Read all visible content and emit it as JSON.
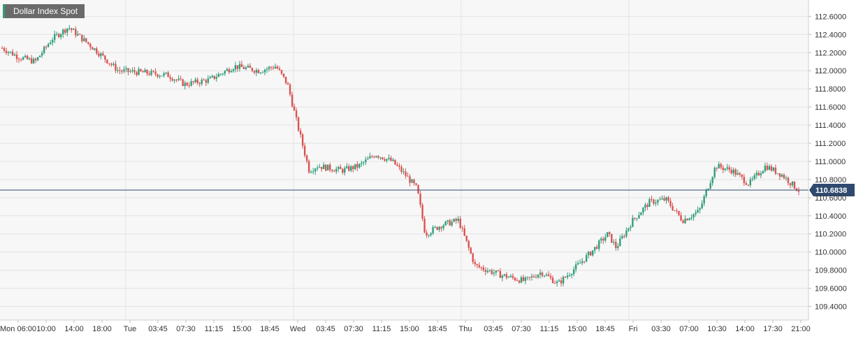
{
  "chart_data": {
    "type": "candlestick",
    "title": "Dollar Index Spot",
    "last_price": "110.6838",
    "ylim": [
      109.25,
      112.78
    ],
    "y_ticks": [
      "112.6000",
      "112.4000",
      "112.2000",
      "112.0000",
      "111.8000",
      "111.6000",
      "111.4000",
      "111.2000",
      "111.0000",
      "110.8000",
      "110.6000",
      "110.4000",
      "110.2000",
      "110.0000",
      "109.8000",
      "109.6000",
      "109.4000"
    ],
    "x_ticks": [
      "Mon 06:00",
      "10:00",
      "14:00",
      "18:00",
      "Tue",
      "03:45",
      "07:30",
      "11:15",
      "15:00",
      "18:45",
      "Wed",
      "03:45",
      "07:30",
      "11:15",
      "15:00",
      "18:45",
      "Thu",
      "03:45",
      "07:30",
      "11:15",
      "15:00",
      "18:45",
      "Fri",
      "03:30",
      "07:00",
      "10:30",
      "14:00",
      "17:30",
      "21:00"
    ],
    "vertical_grid_at": [
      "Tue",
      "Wed",
      "Thu",
      "Fri"
    ],
    "grid": true,
    "colors": {
      "up": "#2e9e7a",
      "down": "#d9534f",
      "last_line": "#2f4a6e",
      "label_bg": "#2f4a6e",
      "grid": "#e3e3e3",
      "plot_bg": "#f7f7f8"
    },
    "path_anchors": [
      {
        "day": 0.0,
        "price": 112.25
      },
      {
        "day": 0.1,
        "price": 112.15
      },
      {
        "day": 0.2,
        "price": 112.1
      },
      {
        "day": 0.3,
        "price": 112.35
      },
      {
        "day": 0.4,
        "price": 112.48
      },
      {
        "day": 0.55,
        "price": 112.25
      },
      {
        "day": 0.7,
        "price": 112.0
      },
      {
        "day": 0.85,
        "price": 111.98
      },
      {
        "day": 1.0,
        "price": 111.95
      },
      {
        "day": 1.1,
        "price": 111.85
      },
      {
        "day": 1.25,
        "price": 111.9
      },
      {
        "day": 1.4,
        "price": 112.05
      },
      {
        "day": 1.55,
        "price": 112.0
      },
      {
        "day": 1.65,
        "price": 112.05
      },
      {
        "day": 1.72,
        "price": 111.85
      },
      {
        "day": 1.78,
        "price": 111.4
      },
      {
        "day": 1.85,
        "price": 110.9
      },
      {
        "day": 1.9,
        "price": 110.95
      },
      {
        "day": 2.05,
        "price": 110.9
      },
      {
        "day": 2.15,
        "price": 110.95
      },
      {
        "day": 2.25,
        "price": 111.08
      },
      {
        "day": 2.35,
        "price": 111.0
      },
      {
        "day": 2.43,
        "price": 110.85
      },
      {
        "day": 2.5,
        "price": 110.7
      },
      {
        "day": 2.55,
        "price": 110.2
      },
      {
        "day": 2.65,
        "price": 110.3
      },
      {
        "day": 2.75,
        "price": 110.35
      },
      {
        "day": 2.85,
        "price": 109.85
      },
      {
        "day": 3.0,
        "price": 109.75
      },
      {
        "day": 3.15,
        "price": 109.68
      },
      {
        "day": 3.25,
        "price": 109.78
      },
      {
        "day": 3.35,
        "price": 109.65
      },
      {
        "day": 3.45,
        "price": 109.82
      },
      {
        "day": 3.55,
        "price": 110.0
      },
      {
        "day": 3.65,
        "price": 110.2
      },
      {
        "day": 3.7,
        "price": 110.05
      },
      {
        "day": 3.8,
        "price": 110.35
      },
      {
        "day": 3.9,
        "price": 110.55
      },
      {
        "day": 4.0,
        "price": 110.58
      },
      {
        "day": 4.1,
        "price": 110.35
      },
      {
        "day": 4.2,
        "price": 110.45
      },
      {
        "day": 4.3,
        "price": 110.95
      },
      {
        "day": 4.4,
        "price": 110.9
      },
      {
        "day": 4.5,
        "price": 110.75
      },
      {
        "day": 4.6,
        "price": 110.95
      },
      {
        "day": 4.7,
        "price": 110.85
      },
      {
        "day": 4.8,
        "price": 110.68
      }
    ]
  }
}
